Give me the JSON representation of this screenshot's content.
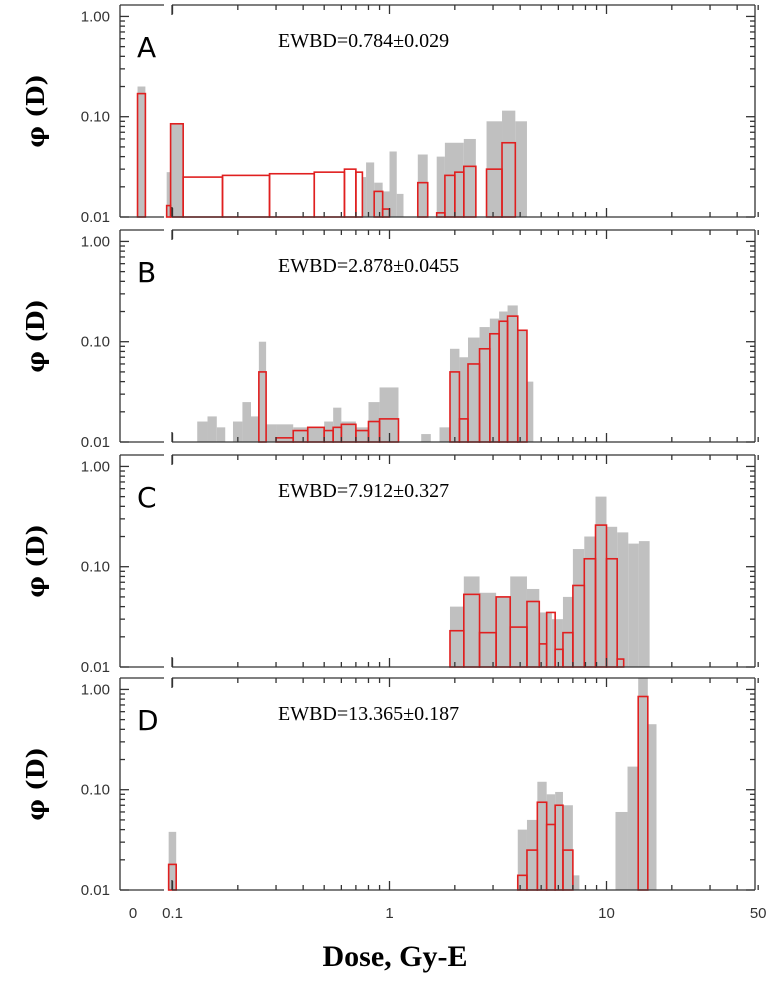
{
  "chart_data": [
    {
      "type": "bar",
      "panel": "A",
      "annotation": "EWBD=0.784±0.029",
      "xlim": [
        0.065,
        50
      ],
      "ylim": [
        0.01,
        1.3
      ],
      "ylog": true,
      "xlog": true,
      "ylabel": "φ (D)",
      "yticks": [
        {
          "v": 0.01,
          "label": "0.01"
        },
        {
          "v": 0.1,
          "label": "0.10"
        },
        {
          "v": 1,
          "label": "1.00"
        }
      ],
      "gray": [
        [
          0.069,
          0.075,
          0.2
        ],
        [
          0.094,
          0.098,
          0.028
        ],
        [
          0.098,
          0.112,
          0.085
        ],
        [
          0.75,
          0.78,
          0.025
        ],
        [
          0.78,
          0.85,
          0.035
        ],
        [
          0.85,
          0.93,
          0.022
        ],
        [
          0.93,
          1.0,
          0.018
        ],
        [
          1.0,
          1.08,
          0.045
        ],
        [
          1.08,
          1.16,
          0.017
        ],
        [
          1.35,
          1.5,
          0.042
        ],
        [
          1.65,
          1.8,
          0.04
        ],
        [
          1.8,
          2.2,
          0.055
        ],
        [
          2.2,
          2.5,
          0.06
        ],
        [
          2.8,
          3.3,
          0.09
        ],
        [
          3.3,
          3.8,
          0.115
        ],
        [
          3.8,
          4.3,
          0.09
        ]
      ],
      "red": [
        [
          0.069,
          0.075,
          0.17
        ],
        [
          0.094,
          0.098,
          0.013
        ],
        [
          0.098,
          0.112,
          0.085
        ],
        [
          0.112,
          0.17,
          0.025
        ],
        [
          0.17,
          0.28,
          0.026
        ],
        [
          0.28,
          0.45,
          0.027
        ],
        [
          0.45,
          0.62,
          0.028
        ],
        [
          0.62,
          0.7,
          0.03
        ],
        [
          0.7,
          0.75,
          0.028
        ],
        [
          0.85,
          0.93,
          0.018
        ],
        [
          0.93,
          1.0,
          0.012
        ],
        [
          1.35,
          1.5,
          0.022
        ],
        [
          1.65,
          1.8,
          0.011
        ],
        [
          1.8,
          2.0,
          0.026
        ],
        [
          2.0,
          2.2,
          0.028
        ],
        [
          2.2,
          2.5,
          0.032
        ],
        [
          2.8,
          3.3,
          0.03
        ],
        [
          3.3,
          3.8,
          0.055
        ]
      ]
    },
    {
      "type": "bar",
      "panel": "B",
      "annotation": "EWBD=2.878±0.0455",
      "xlim": [
        0.065,
        50
      ],
      "ylim": [
        0.01,
        1.3
      ],
      "ylog": true,
      "xlog": true,
      "ylabel": "φ (D)",
      "yticks": [
        {
          "v": 0.01,
          "label": "0.01"
        },
        {
          "v": 0.1,
          "label": "0.10"
        },
        {
          "v": 1,
          "label": "1.00"
        }
      ],
      "gray": [
        [
          0.13,
          0.145,
          0.016
        ],
        [
          0.145,
          0.16,
          0.018
        ],
        [
          0.16,
          0.175,
          0.014
        ],
        [
          0.19,
          0.21,
          0.016
        ],
        [
          0.21,
          0.23,
          0.025
        ],
        [
          0.23,
          0.25,
          0.018
        ],
        [
          0.25,
          0.27,
          0.1
        ],
        [
          0.27,
          0.3,
          0.015
        ],
        [
          0.3,
          0.36,
          0.015
        ],
        [
          0.36,
          0.42,
          0.014
        ],
        [
          0.42,
          0.5,
          0.014
        ],
        [
          0.5,
          0.55,
          0.016
        ],
        [
          0.55,
          0.6,
          0.022
        ],
        [
          0.6,
          0.7,
          0.016
        ],
        [
          0.7,
          0.8,
          0.014
        ],
        [
          0.8,
          0.9,
          0.025
        ],
        [
          0.9,
          1.1,
          0.035
        ],
        [
          1.4,
          1.55,
          0.012
        ],
        [
          1.7,
          1.9,
          0.014
        ],
        [
          1.9,
          2.1,
          0.085
        ],
        [
          2.1,
          2.3,
          0.07
        ],
        [
          2.3,
          2.6,
          0.11
        ],
        [
          2.6,
          2.9,
          0.14
        ],
        [
          2.9,
          3.2,
          0.17
        ],
        [
          3.2,
          3.5,
          0.2
        ],
        [
          3.5,
          3.9,
          0.23
        ],
        [
          3.9,
          4.3,
          0.13
        ],
        [
          4.3,
          4.6,
          0.04
        ]
      ],
      "red": [
        [
          0.25,
          0.27,
          0.05
        ],
        [
          0.3,
          0.36,
          0.011
        ],
        [
          0.36,
          0.42,
          0.013
        ],
        [
          0.42,
          0.5,
          0.014
        ],
        [
          0.5,
          0.55,
          0.013
        ],
        [
          0.55,
          0.6,
          0.014
        ],
        [
          0.6,
          0.7,
          0.015
        ],
        [
          0.7,
          0.8,
          0.013
        ],
        [
          0.8,
          0.9,
          0.016
        ],
        [
          0.9,
          1.1,
          0.017
        ],
        [
          1.9,
          2.1,
          0.05
        ],
        [
          2.1,
          2.3,
          0.017
        ],
        [
          2.3,
          2.6,
          0.06
        ],
        [
          2.6,
          2.9,
          0.085
        ],
        [
          2.9,
          3.2,
          0.12
        ],
        [
          3.2,
          3.5,
          0.16
        ],
        [
          3.5,
          3.9,
          0.18
        ],
        [
          3.9,
          4.3,
          0.13
        ]
      ]
    },
    {
      "type": "bar",
      "panel": "C",
      "annotation": "EWBD=7.912±0.327",
      "xlim": [
        0.065,
        50
      ],
      "ylim": [
        0.01,
        1.3
      ],
      "ylog": true,
      "xlog": true,
      "ylabel": "φ (D)",
      "yticks": [
        {
          "v": 0.01,
          "label": "0.01"
        },
        {
          "v": 0.1,
          "label": "0.10"
        },
        {
          "v": 1,
          "label": "1.00"
        }
      ],
      "gray": [
        [
          1.9,
          2.2,
          0.04
        ],
        [
          2.2,
          2.6,
          0.08
        ],
        [
          2.6,
          3.1,
          0.055
        ],
        [
          3.1,
          3.6,
          0.05
        ],
        [
          3.6,
          4.3,
          0.08
        ],
        [
          4.3,
          4.9,
          0.06
        ],
        [
          4.9,
          5.6,
          0.035
        ],
        [
          5.6,
          6.3,
          0.03
        ],
        [
          6.3,
          7.0,
          0.05
        ],
        [
          7.0,
          7.9,
          0.15
        ],
        [
          7.9,
          8.9,
          0.2
        ],
        [
          8.9,
          10.0,
          0.5
        ],
        [
          10.0,
          11.2,
          0.25
        ],
        [
          11.2,
          12.6,
          0.22
        ],
        [
          12.6,
          14.1,
          0.17
        ],
        [
          14.1,
          15.8,
          0.18
        ]
      ],
      "red": [
        [
          1.9,
          2.2,
          0.023
        ],
        [
          2.2,
          2.6,
          0.053
        ],
        [
          2.6,
          3.1,
          0.022
        ],
        [
          3.1,
          3.6,
          0.05
        ],
        [
          3.6,
          4.3,
          0.025
        ],
        [
          4.3,
          4.9,
          0.045
        ],
        [
          4.9,
          5.3,
          0.017
        ],
        [
          5.3,
          5.8,
          0.035
        ],
        [
          5.8,
          6.3,
          0.015
        ],
        [
          6.3,
          7.0,
          0.022
        ],
        [
          7.0,
          7.9,
          0.065
        ],
        [
          7.9,
          8.9,
          0.12
        ],
        [
          8.9,
          10.0,
          0.26
        ],
        [
          10.0,
          11.2,
          0.12
        ],
        [
          11.2,
          12.0,
          0.012
        ]
      ]
    },
    {
      "type": "bar",
      "panel": "D",
      "annotation": "EWBD=13.365±0.187",
      "xlim": [
        0.065,
        50
      ],
      "ylim": [
        0.01,
        1.3
      ],
      "ylog": true,
      "xlog": true,
      "ylabel": "φ (D)",
      "yticks": [
        {
          "v": 0.01,
          "label": "0.01"
        },
        {
          "v": 0.1,
          "label": "0.10"
        },
        {
          "v": 1,
          "label": "1.00"
        }
      ],
      "gray": [
        [
          0.096,
          0.104,
          0.038
        ],
        [
          3.9,
          4.3,
          0.04
        ],
        [
          4.3,
          4.8,
          0.05
        ],
        [
          4.8,
          5.3,
          0.12
        ],
        [
          5.3,
          5.8,
          0.09
        ],
        [
          5.8,
          6.3,
          0.095
        ],
        [
          6.3,
          7.0,
          0.07
        ],
        [
          7.0,
          7.5,
          0.014
        ],
        [
          11.0,
          12.5,
          0.06
        ],
        [
          12.5,
          14.0,
          0.17
        ],
        [
          14.0,
          15.5,
          1.3
        ],
        [
          15.5,
          17.0,
          0.45
        ]
      ],
      "red": [
        [
          0.096,
          0.104,
          0.018
        ],
        [
          3.9,
          4.3,
          0.014
        ],
        [
          4.3,
          4.8,
          0.025
        ],
        [
          4.8,
          5.3,
          0.075
        ],
        [
          5.3,
          5.8,
          0.045
        ],
        [
          5.8,
          6.3,
          0.07
        ],
        [
          6.3,
          7.0,
          0.025
        ],
        [
          14.0,
          15.5,
          0.85
        ]
      ]
    }
  ],
  "xaxis": {
    "title": "Dose, Gy-E",
    "ticks": [
      {
        "v": 0.1,
        "label": "0.1"
      },
      {
        "v": 1,
        "label": "1"
      },
      {
        "v": 10,
        "label": "10"
      },
      {
        "v": 50,
        "label": "50"
      }
    ],
    "zero_label": "0"
  },
  "colors": {
    "gray": "#c0c0c0",
    "red": "#e01f1f",
    "axis": "#333333"
  }
}
